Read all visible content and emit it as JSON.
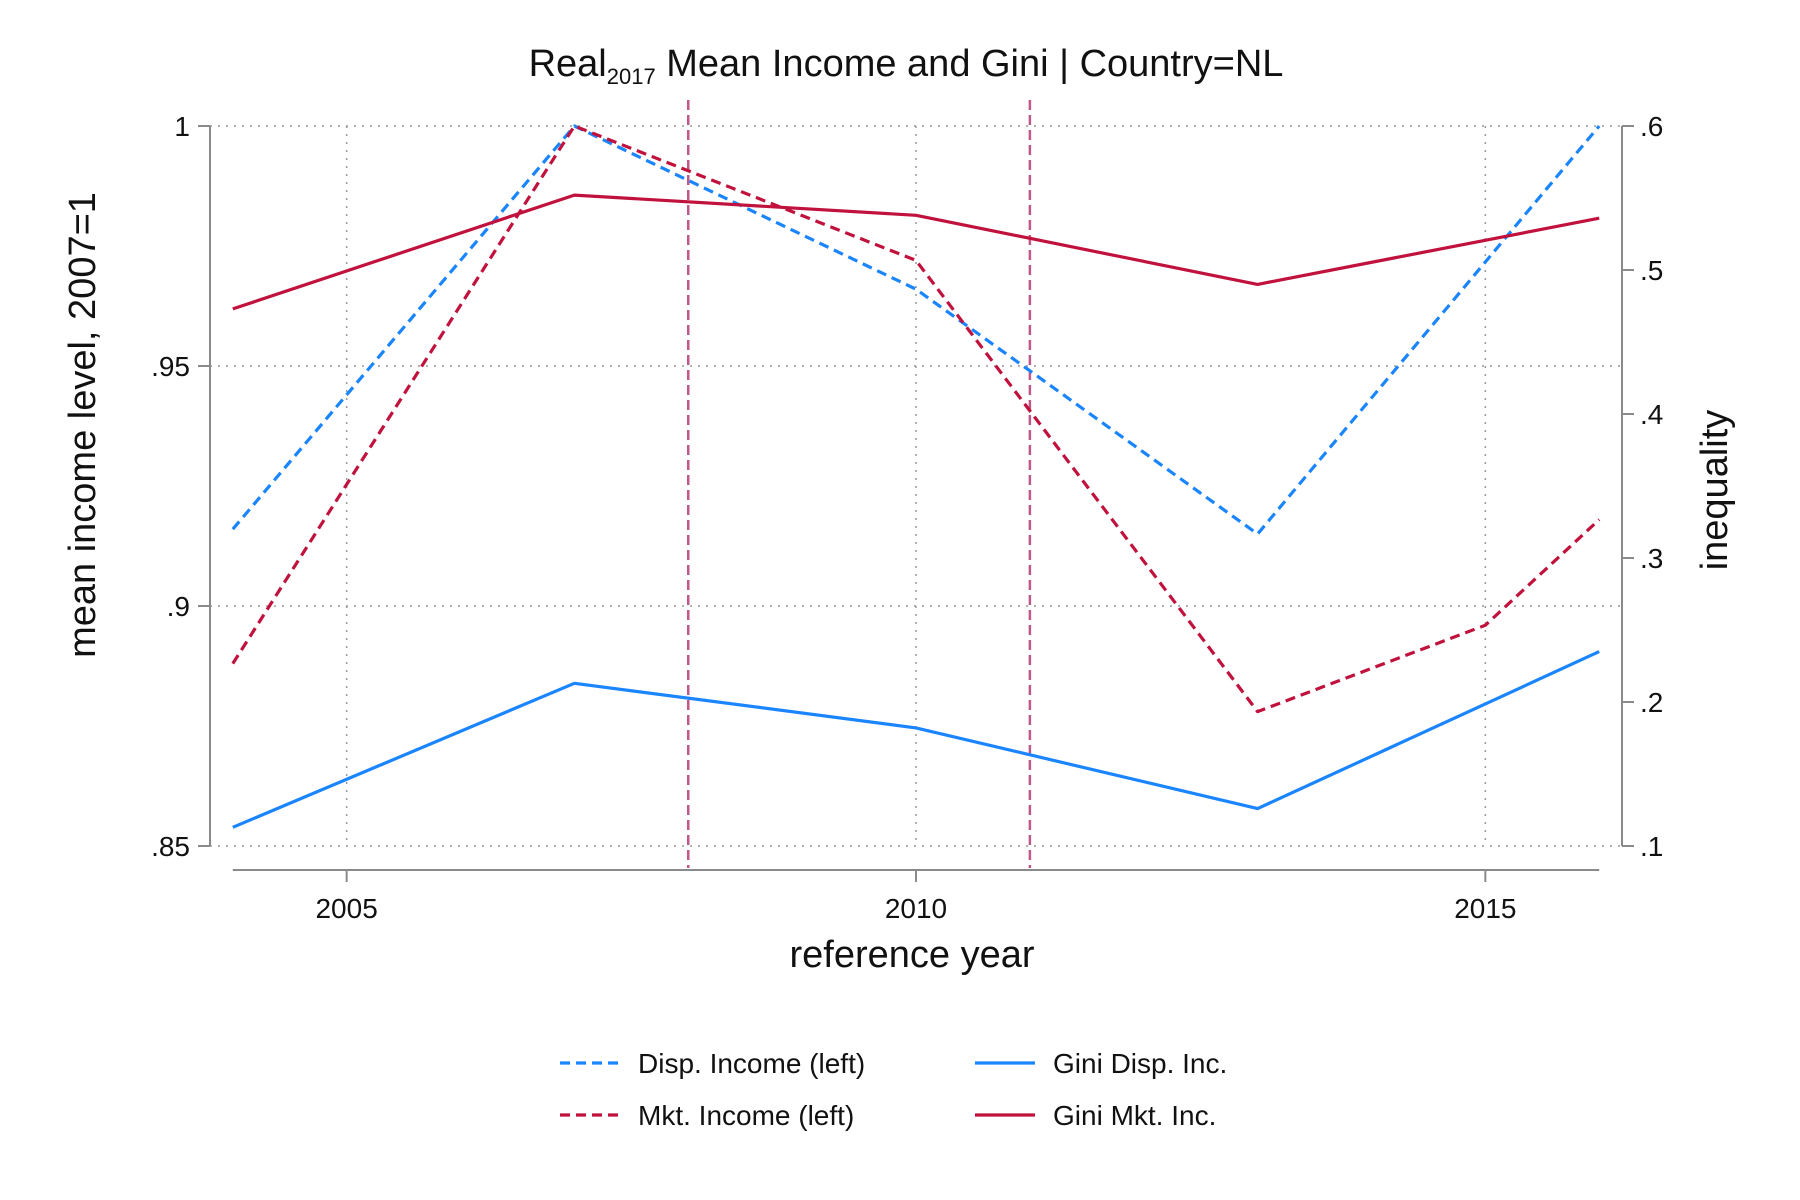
{
  "chart_data": {
    "type": "line",
    "title": {
      "prefix": "Real",
      "subscript": "2017",
      "rest": " Mean Income and Gini | Country=NL"
    },
    "xlabel": "reference year",
    "ylabel_left": "mean income level, 2007=1",
    "ylabel_right": "inequality",
    "xlim": [
      2003.8,
      2016.2
    ],
    "ylim_left": [
      0.85,
      1.0
    ],
    "ylim_right": [
      0.1,
      0.6
    ],
    "x_ticks": [
      2005,
      2010,
      2015
    ],
    "x_tick_labels": [
      "2005",
      "2010",
      "2015"
    ],
    "y_left_ticks": [
      0.85,
      0.9,
      0.95,
      1.0
    ],
    "y_left_tick_labels": [
      ".85",
      ".9",
      ".95",
      "1"
    ],
    "y_right_ticks": [
      0.1,
      0.2,
      0.3,
      0.4,
      0.5,
      0.6
    ],
    "y_right_tick_labels": [
      ".1",
      ".2",
      ".3",
      ".4",
      ".5",
      ".6"
    ],
    "grid": true,
    "legend_position": "bottom",
    "vertical_reference_lines": [
      2008,
      2011
    ],
    "reference_line_color": "#c0588a",
    "series": [
      {
        "name": "Disp. Income (left)",
        "axis": "left",
        "style": "dashed",
        "color": "#1a85ff",
        "x": [
          2004,
          2007,
          2010,
          2013,
          2016
        ],
        "values": [
          0.916,
          1.0,
          0.966,
          0.915,
          1.0
        ]
      },
      {
        "name": "Mkt. Income (left)",
        "axis": "left",
        "style": "dashed",
        "color": "#c0123c",
        "x": [
          2004,
          2007,
          2010,
          2013,
          2015,
          2016
        ],
        "values": [
          0.888,
          1.0,
          0.972,
          0.878,
          0.896,
          0.918
        ]
      },
      {
        "name": "Gini Disp. Inc.",
        "axis": "right",
        "style": "solid",
        "color": "#1a85ff",
        "x": [
          2004,
          2007,
          2010,
          2013,
          2016
        ],
        "values": [
          0.113,
          0.213,
          0.182,
          0.126,
          0.235
        ]
      },
      {
        "name": "Gini Mkt. Inc.",
        "axis": "right",
        "style": "solid",
        "color": "#c0123c",
        "x": [
          2004,
          2007,
          2010,
          2013,
          2016
        ],
        "values": [
          0.473,
          0.552,
          0.538,
          0.49,
          0.536
        ]
      }
    ]
  }
}
